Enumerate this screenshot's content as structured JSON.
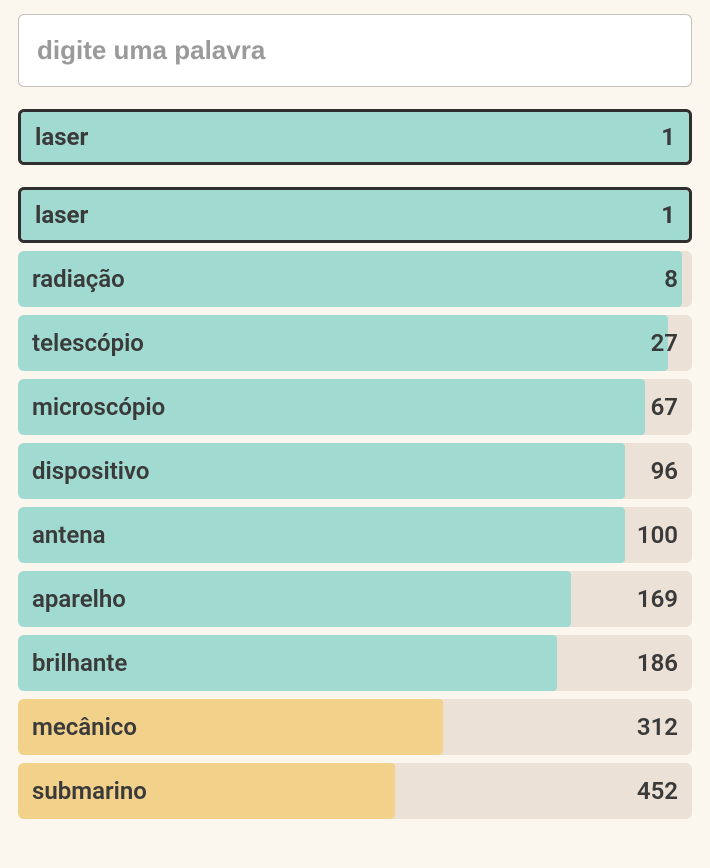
{
  "search": {
    "placeholder": "digite uma palavra",
    "value": ""
  },
  "top_guess": {
    "word": "laser",
    "score": 1,
    "fill_pct": 100,
    "fill_color": "#a0dad0",
    "outlined": true
  },
  "guesses": [
    {
      "word": "laser",
      "score": 1,
      "fill_pct": 100,
      "fill_color": "#a0dad0",
      "outlined": true
    },
    {
      "word": "radiação",
      "score": 8,
      "fill_pct": 98.5,
      "fill_color": "#a0dad0",
      "outlined": false
    },
    {
      "word": "telescópio",
      "score": 27,
      "fill_pct": 96.5,
      "fill_color": "#a0dad0",
      "outlined": false
    },
    {
      "word": "microscópio",
      "score": 67,
      "fill_pct": 93,
      "fill_color": "#a0dad0",
      "outlined": false
    },
    {
      "word": "dispositivo",
      "score": 96,
      "fill_pct": 90,
      "fill_color": "#a0dad0",
      "outlined": false
    },
    {
      "word": "antena",
      "score": 100,
      "fill_pct": 90,
      "fill_color": "#a0dad0",
      "outlined": false
    },
    {
      "word": "aparelho",
      "score": 169,
      "fill_pct": 82,
      "fill_color": "#a0dad0",
      "outlined": false
    },
    {
      "word": "brilhante",
      "score": 186,
      "fill_pct": 80,
      "fill_color": "#a0dad0",
      "outlined": false
    },
    {
      "word": "mecânico",
      "score": 312,
      "fill_pct": 63,
      "fill_color": "#f2d18b",
      "outlined": false
    },
    {
      "word": "submarino",
      "score": 452,
      "fill_pct": 56,
      "fill_color": "#f2d18b",
      "outlined": false
    }
  ],
  "colors": {
    "background": "#fbf7ef",
    "row_bg": "#ece1d6",
    "text": "#3a3a3a",
    "outline": "#2f2f2f"
  }
}
